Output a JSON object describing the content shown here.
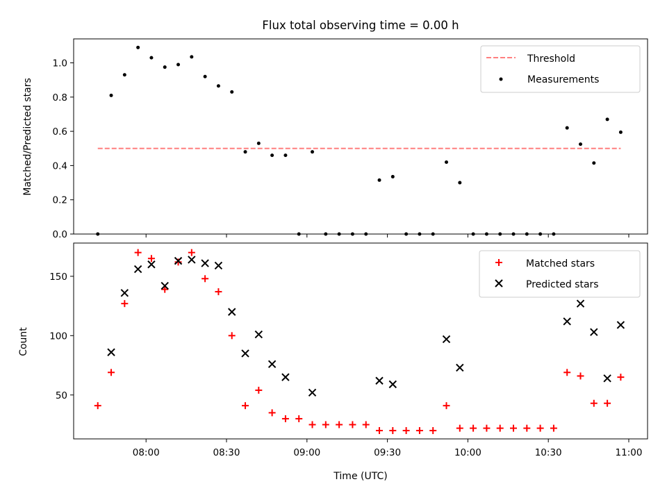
{
  "chart_data": [
    {
      "type": "scatter",
      "title": "Flux total observing time = 0.00 h",
      "ylabel": "Matched/Predicted stars",
      "xlabel": "",
      "ylim": [
        0,
        1.14
      ],
      "yticks": [
        0.0,
        0.2,
        0.4,
        0.6,
        0.8,
        1.0
      ],
      "ytick_labels": [
        "0.0",
        "0.2",
        "0.4",
        "0.6",
        "0.8",
        "1.0"
      ],
      "legend_position": "top-right",
      "grid": false,
      "threshold": {
        "name": "Threshold",
        "value": 0.5,
        "x_range": [
          "07:42",
          "10:57"
        ],
        "color": "#ff7f7f"
      },
      "measurements": {
        "name": "Measurements",
        "color": "#000000",
        "points": [
          [
            "07:42",
            0.0
          ],
          [
            "07:47",
            0.81
          ],
          [
            "07:52",
            0.93
          ],
          [
            "07:57",
            1.09
          ],
          [
            "08:02",
            1.03
          ],
          [
            "08:07",
            0.975
          ],
          [
            "08:12",
            0.99
          ],
          [
            "08:17",
            1.035
          ],
          [
            "08:22",
            0.92
          ],
          [
            "08:27",
            0.865
          ],
          [
            "08:32",
            0.83
          ],
          [
            "08:37",
            0.48
          ],
          [
            "08:42",
            0.53
          ],
          [
            "08:47",
            0.46
          ],
          [
            "08:52",
            0.46
          ],
          [
            "08:57",
            0.0
          ],
          [
            "09:02",
            0.48
          ],
          [
            "09:07",
            0.0
          ],
          [
            "09:12",
            0.0
          ],
          [
            "09:17",
            0.0
          ],
          [
            "09:22",
            0.0
          ],
          [
            "09:27",
            0.315
          ],
          [
            "09:32",
            0.335
          ],
          [
            "09:37",
            0.0
          ],
          [
            "09:42",
            0.0
          ],
          [
            "09:47",
            0.0
          ],
          [
            "09:52",
            0.42
          ],
          [
            "09:57",
            0.3
          ],
          [
            "10:02",
            0.0
          ],
          [
            "10:07",
            0.0
          ],
          [
            "10:12",
            0.0
          ],
          [
            "10:17",
            0.0
          ],
          [
            "10:22",
            0.0
          ],
          [
            "10:27",
            0.0
          ],
          [
            "10:32",
            0.0
          ],
          [
            "10:37",
            0.62
          ],
          [
            "10:42",
            0.525
          ],
          [
            "10:47",
            0.415
          ],
          [
            "10:52",
            0.67
          ],
          [
            "10:57",
            0.595
          ]
        ]
      }
    },
    {
      "type": "scatter",
      "title": "",
      "ylabel": "Count",
      "xlabel": "Time (UTC)",
      "ylim": [
        13,
        178
      ],
      "yticks": [
        50,
        100,
        150
      ],
      "ytick_labels": [
        "50",
        "100",
        "150"
      ],
      "xlim": [
        "07:33",
        "11:07"
      ],
      "xticks": [
        "08:00",
        "08:30",
        "09:00",
        "09:30",
        "10:00",
        "10:30",
        "11:00"
      ],
      "xtick_labels": [
        "08:00",
        "08:30",
        "09:00",
        "09:30",
        "10:00",
        "10:30",
        "11:00"
      ],
      "legend_position": "top-right",
      "grid": false,
      "series": [
        {
          "name": "Matched stars",
          "marker": "plus",
          "color": "#ff0000",
          "points": [
            [
              "07:42",
              41
            ],
            [
              "07:47",
              69
            ],
            [
              "07:52",
              127
            ],
            [
              "07:57",
              170
            ],
            [
              "08:02",
              165
            ],
            [
              "08:07",
              139
            ],
            [
              "08:12",
              162
            ],
            [
              "08:17",
              170
            ],
            [
              "08:22",
              148
            ],
            [
              "08:27",
              137
            ],
            [
              "08:32",
              100
            ],
            [
              "08:37",
              41
            ],
            [
              "08:42",
              54
            ],
            [
              "08:47",
              35
            ],
            [
              "08:52",
              30
            ],
            [
              "08:57",
              30
            ],
            [
              "09:02",
              25
            ],
            [
              "09:07",
              25
            ],
            [
              "09:12",
              25
            ],
            [
              "09:17",
              25
            ],
            [
              "09:22",
              25
            ],
            [
              "09:27",
              20
            ],
            [
              "09:32",
              20
            ],
            [
              "09:37",
              20
            ],
            [
              "09:42",
              20
            ],
            [
              "09:47",
              20
            ],
            [
              "09:52",
              41
            ],
            [
              "09:57",
              22
            ],
            [
              "10:02",
              22
            ],
            [
              "10:07",
              22
            ],
            [
              "10:12",
              22
            ],
            [
              "10:17",
              22
            ],
            [
              "10:22",
              22
            ],
            [
              "10:27",
              22
            ],
            [
              "10:32",
              22
            ],
            [
              "10:37",
              69
            ],
            [
              "10:42",
              66
            ],
            [
              "10:47",
              43
            ],
            [
              "10:52",
              43
            ],
            [
              "10:57",
              65
            ]
          ]
        },
        {
          "name": "Predicted stars",
          "marker": "x",
          "color": "#000000",
          "points": [
            [
              "07:47",
              86
            ],
            [
              "07:52",
              136
            ],
            [
              "07:57",
              156
            ],
            [
              "08:02",
              160
            ],
            [
              "08:07",
              142
            ],
            [
              "08:12",
              163
            ],
            [
              "08:17",
              164
            ],
            [
              "08:22",
              161
            ],
            [
              "08:27",
              159
            ],
            [
              "08:32",
              120
            ],
            [
              "08:37",
              85
            ],
            [
              "08:42",
              101
            ],
            [
              "08:47",
              76
            ],
            [
              "08:52",
              65
            ],
            [
              "09:02",
              52
            ],
            [
              "09:27",
              62
            ],
            [
              "09:32",
              59
            ],
            [
              "09:52",
              97
            ],
            [
              "09:57",
              73
            ],
            [
              "10:37",
              112
            ],
            [
              "10:42",
              127
            ],
            [
              "10:47",
              103
            ],
            [
              "10:52",
              64
            ],
            [
              "10:57",
              109
            ]
          ]
        }
      ]
    }
  ]
}
